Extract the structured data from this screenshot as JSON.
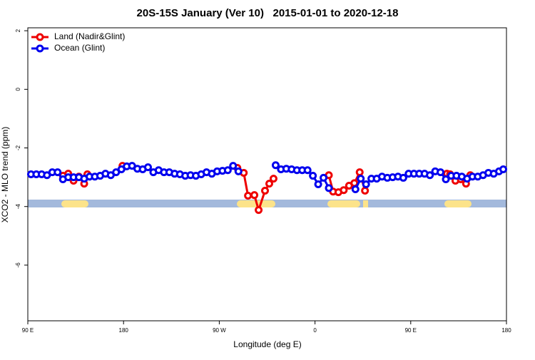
{
  "chart_data": {
    "type": "line",
    "title": "20S-15S January (Ver 10)   2015-01-01 to 2020-12-18",
    "x_label": "Longitude (deg E)",
    "y_label": "XCO2 - MLO trend (ppm)",
    "xlim": [
      90,
      540
    ],
    "xticks": [
      {
        "value": 90,
        "label": "90 E"
      },
      180,
      {
        "value": 270,
        "label": "90 W"
      },
      {
        "value": 360,
        "label": "0"
      },
      {
        "value": 450,
        "label": "90 E"
      },
      {
        "value": 540,
        "label": "180"
      }
    ],
    "ylim": [
      -7.9,
      2.1
    ],
    "yticks": [
      2,
      0,
      -2,
      -4,
      -6
    ],
    "legend": "top-left",
    "series": [
      {
        "name": "Land (Nadir&Glint)",
        "color": "#ee0000",
        "x": [
          123,
          128,
          133,
          138,
          143,
          146,
          null,
          179,
          null,
          287,
          293,
          297,
          303,
          307,
          313,
          317,
          321,
          null,
          373,
          377,
          382,
          387,
          392,
          397,
          402,
          407,
          null,
          484,
          487,
          492,
          497,
          502,
          506
        ],
        "values": [
          -2.95,
          -2.88,
          -3.12,
          -2.98,
          -3.22,
          -2.9,
          null,
          -2.61,
          null,
          -2.68,
          -2.85,
          -3.63,
          -3.61,
          -4.12,
          -3.46,
          -3.22,
          -3.05,
          null,
          -2.93,
          -3.49,
          -3.51,
          -3.44,
          -3.29,
          -3.2,
          -2.83,
          -3.46,
          null,
          -2.88,
          -2.9,
          -3.12,
          -3.07,
          -3.22,
          -2.93
        ]
      },
      {
        "name": "Ocean (Glint)",
        "color": "#0000ee",
        "x": [
          93,
          98,
          103,
          108,
          113,
          118,
          123,
          128,
          133,
          138,
          143,
          148,
          153,
          158,
          163,
          168,
          173,
          178,
          183,
          188,
          193,
          198,
          203,
          208,
          213,
          218,
          223,
          228,
          233,
          238,
          243,
          248,
          253,
          258,
          263,
          268,
          273,
          278,
          283,
          288,
          null,
          323,
          328,
          333,
          338,
          343,
          348,
          353,
          358,
          363,
          368,
          373,
          null,
          398,
          403,
          408,
          413,
          418,
          423,
          428,
          433,
          438,
          443,
          448,
          453,
          458,
          463,
          468,
          473,
          478,
          483,
          488,
          493,
          498,
          503,
          508,
          513,
          518,
          523,
          528,
          533,
          537
        ],
        "values": [
          -2.9,
          -2.9,
          -2.9,
          -2.93,
          -2.83,
          -2.83,
          -3.07,
          -3.0,
          -3.0,
          -3.0,
          -3.05,
          -2.98,
          -2.98,
          -2.95,
          -2.88,
          -2.93,
          -2.83,
          -2.73,
          -2.63,
          -2.61,
          -2.71,
          -2.73,
          -2.66,
          -2.83,
          -2.76,
          -2.83,
          -2.83,
          -2.88,
          -2.9,
          -2.95,
          -2.93,
          -2.95,
          -2.9,
          -2.83,
          -2.88,
          -2.8,
          -2.78,
          -2.76,
          -2.61,
          -2.8,
          null,
          -2.59,
          -2.73,
          -2.71,
          -2.73,
          -2.76,
          -2.76,
          -2.76,
          -2.95,
          -3.24,
          -3.02,
          -3.37,
          null,
          -3.41,
          -3.05,
          -3.24,
          -3.05,
          -3.05,
          -2.98,
          -3.02,
          -3.0,
          -2.98,
          -3.02,
          -2.88,
          -2.88,
          -2.88,
          -2.88,
          -2.93,
          -2.8,
          -2.83,
          -3.07,
          -2.95,
          -2.95,
          -2.98,
          -3.05,
          -2.98,
          -2.98,
          -2.93,
          -2.85,
          -2.88,
          -2.8,
          -2.73
        ]
      }
    ]
  }
}
